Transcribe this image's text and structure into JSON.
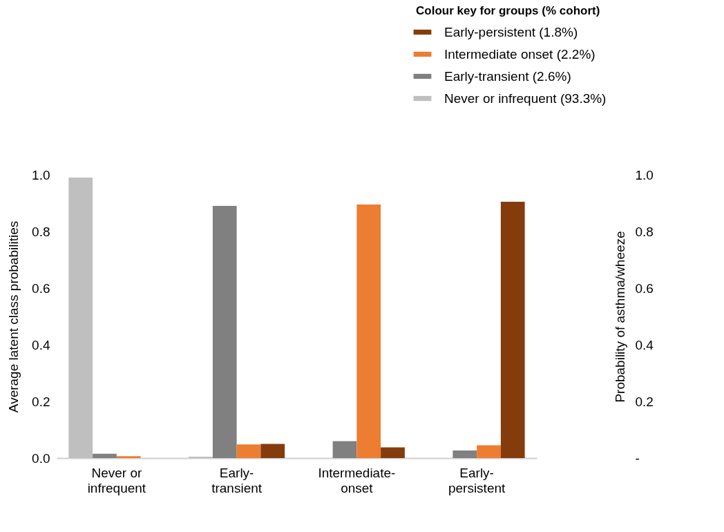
{
  "chart_data": {
    "type": "bar",
    "categories": [
      "Never or infrequent",
      "Early-transient",
      "Intermediate-onset",
      "Early-persistent"
    ],
    "ylabel": "Average latent class probabilities",
    "y2label": "Probability of asthma/wheeze",
    "legend_title": "Colour key for groups (% cohort)",
    "legend": "top right",
    "grid": false,
    "ylim": [
      0,
      1
    ],
    "yticks": [
      {
        "value": 0,
        "label": "0.0"
      },
      0.2,
      0.4,
      0.6,
      0.8,
      {
        "value": 1,
        "label": "1.0"
      }
    ],
    "y2lim": [
      0,
      1
    ],
    "y2ticks": [
      {
        "value": 0,
        "label": "-"
      },
      0.2,
      0.4,
      0.6,
      0.8,
      {
        "value": 1,
        "label": "1.0"
      }
    ],
    "series": [
      {
        "name": "Never or infrequent (93.3%)",
        "color": "#bfbfbf",
        "values": [
          0.99,
          0.005,
          null,
          0
        ]
      },
      {
        "name": "Early-transient (2.6%)",
        "color": "#808080",
        "values": [
          0.015,
          0.89,
          0.06,
          0.027
        ]
      },
      {
        "name": "Intermediate onset (2.2%)",
        "color": "#ed7d31",
        "values": [
          0.007,
          0.048,
          0.895,
          0.045
        ]
      },
      {
        "name": "Early-persistent (1.8%)",
        "color": "#843c0c",
        "values": [
          0,
          0.05,
          0.038,
          0.905
        ]
      }
    ]
  }
}
